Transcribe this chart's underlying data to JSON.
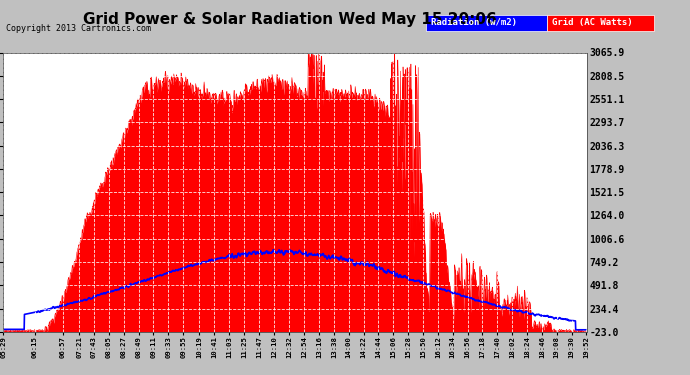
{
  "title": "Grid Power & Solar Radiation Wed May 15 20:06",
  "copyright": "Copyright 2013 Cartronics.com",
  "legend_radiation": "Radiation (w/m2)",
  "legend_grid": "Grid (AC Watts)",
  "yticks": [
    3065.9,
    2808.5,
    2551.1,
    2293.7,
    2036.3,
    1778.9,
    1521.5,
    1264.0,
    1006.6,
    749.2,
    491.8,
    234.4,
    -23.0
  ],
  "ymin": -23.0,
  "ymax": 3065.9,
  "plot_bg_color": "#ffffff",
  "grid_color": "#aaaaaa",
  "radiation_color": "#0000FF",
  "grid_power_color": "#FF0000",
  "fig_bg_color": "#c0c0c0",
  "xtick_labels": [
    "05:29",
    "06:15",
    "06:57",
    "07:21",
    "07:43",
    "08:05",
    "08:27",
    "08:49",
    "09:11",
    "09:33",
    "09:55",
    "10:19",
    "10:41",
    "11:03",
    "11:25",
    "11:47",
    "12:10",
    "12:32",
    "12:54",
    "13:16",
    "13:38",
    "14:00",
    "14:22",
    "14:44",
    "15:06",
    "15:28",
    "15:50",
    "16:12",
    "16:34",
    "16:56",
    "17:18",
    "17:40",
    "18:02",
    "18:24",
    "18:46",
    "19:08",
    "19:30",
    "19:52"
  ]
}
